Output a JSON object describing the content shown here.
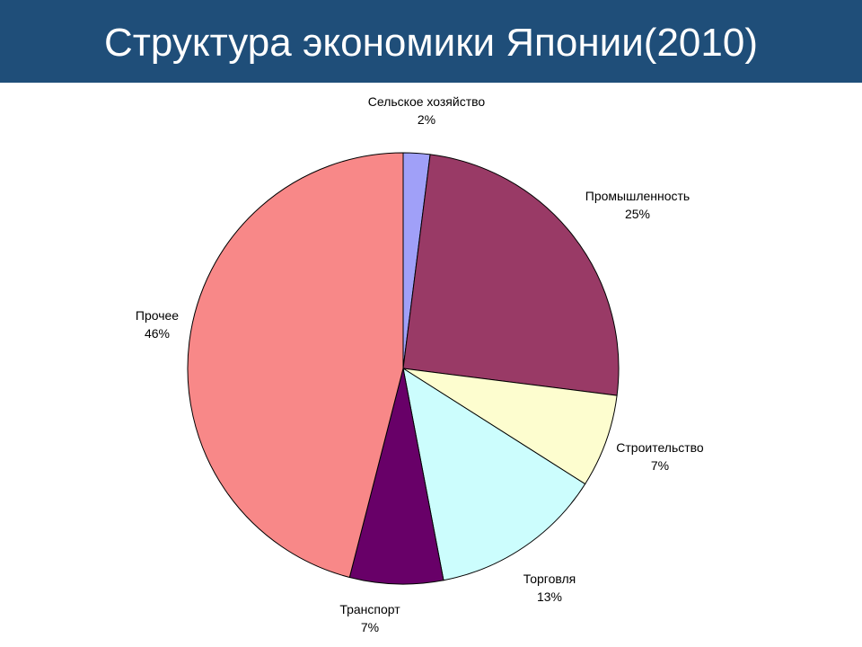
{
  "slide": {
    "title": "Структура экономики Японии(2010)",
    "header_color": "#1f4e79"
  },
  "chart_data": {
    "type": "pie",
    "start_angle_deg": 0,
    "direction": "clockwise",
    "slices": [
      {
        "label": "Сельское хозяйство",
        "value": 2,
        "display": "2%",
        "color": "#a0a0f8"
      },
      {
        "label": "Промышленность",
        "value": 25,
        "display": "25%",
        "color": "#993a66"
      },
      {
        "label": "Строительство",
        "value": 7,
        "display": "7%",
        "color": "#fdfdcf"
      },
      {
        "label": "Торговля",
        "value": 13,
        "display": "13%",
        "color": "#ccfdfd"
      },
      {
        "label": "Транспорт",
        "value": 7,
        "display": "7%",
        "color": "#680068"
      },
      {
        "label": "Прочее",
        "value": 46,
        "display": "46%",
        "color": "#f88888"
      }
    ]
  }
}
